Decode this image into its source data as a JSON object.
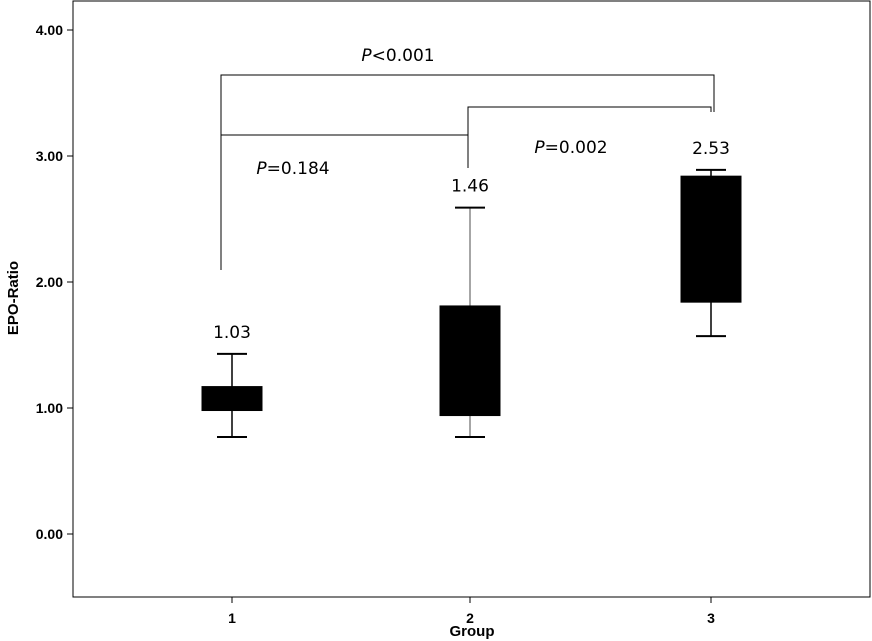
{
  "chart_data": {
    "type": "box",
    "xlabel": "Group",
    "ylabel": "EPO-Ratio",
    "ylim": [
      0,
      4
    ],
    "y_ticks": [
      "0.00",
      "1.00",
      "2.00",
      "3.00",
      "4.00"
    ],
    "categories": [
      "1",
      "2",
      "3"
    ],
    "boxes": [
      {
        "category": "1",
        "whisker_low": 0.77,
        "q1": 0.98,
        "q3": 1.17,
        "whisker_high": 1.43,
        "label": "1.03"
      },
      {
        "category": "2",
        "whisker_low": 0.77,
        "q1": 0.94,
        "q3": 1.81,
        "whisker_high": 2.59,
        "label": "1.46"
      },
      {
        "category": "3",
        "whisker_low": 1.57,
        "q1": 1.84,
        "q3": 2.84,
        "whisker_high": 2.89,
        "label": "2.53"
      }
    ],
    "comparisons": [
      {
        "groups": [
          "1",
          "3"
        ],
        "p_symbol": "P",
        "p_rest": "<0.001"
      },
      {
        "groups": [
          "2",
          "3"
        ],
        "p_symbol": "P",
        "p_rest": "=0.002"
      },
      {
        "groups": [
          "1",
          "2"
        ],
        "p_symbol": "P",
        "p_rest": "=0.184"
      }
    ],
    "grid": false,
    "legend": "none"
  }
}
